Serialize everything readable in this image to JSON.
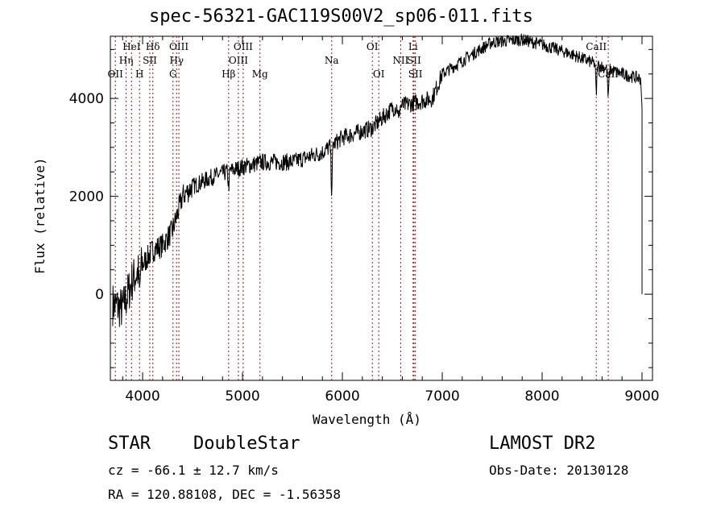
{
  "chart_data": {
    "type": "line",
    "title": "spec-56321-GAC119S00V2_sp06-011.fits",
    "xlabel": "Wavelength (Å)",
    "ylabel": "Flux (relative)",
    "xlim": [
      3677,
      9105
    ],
    "ylim": [
      -1760,
      5270
    ],
    "xticks": [
      4000,
      5000,
      6000,
      7000,
      8000,
      9000
    ],
    "yticks": [
      0,
      2000,
      4000
    ],
    "grid": false,
    "series": [
      {
        "name": "spectrum",
        "continuum": [
          [
            3700,
            -200
          ],
          [
            3800,
            -300
          ],
          [
            3900,
            300
          ],
          [
            4000,
            600
          ],
          [
            4100,
            900
          ],
          [
            4200,
            1000
          ],
          [
            4300,
            1300
          ],
          [
            4400,
            2000
          ],
          [
            4500,
            2200
          ],
          [
            4700,
            2400
          ],
          [
            5000,
            2600
          ],
          [
            5200,
            2700
          ],
          [
            5500,
            2700
          ],
          [
            5800,
            2900
          ],
          [
            6000,
            3200
          ],
          [
            6300,
            3400
          ],
          [
            6500,
            3800
          ],
          [
            6700,
            3900
          ],
          [
            6900,
            4000
          ],
          [
            7000,
            4500
          ],
          [
            7300,
            4900
          ],
          [
            7500,
            5150
          ],
          [
            7800,
            5200
          ],
          [
            8000,
            5100
          ],
          [
            8300,
            4900
          ],
          [
            8600,
            4650
          ],
          [
            8800,
            4500
          ],
          [
            8990,
            4400
          ]
        ],
        "absorption": [
          [
            5893,
            -900
          ],
          [
            8542,
            -600
          ],
          [
            8662,
            -600
          ],
          [
            3969,
            -500
          ],
          [
            4861,
            -300
          ],
          [
            6563,
            -300
          ]
        ],
        "end_drop": [
          [
            9000,
            3800
          ],
          [
            9000,
            0
          ],
          [
            9000,
            1300
          ]
        ]
      }
    ],
    "lines": [
      {
        "label": "OII",
        "wave": 3727,
        "row": 3
      },
      {
        "label": "Hη",
        "wave": 3835,
        "row": 2
      },
      {
        "label": "HeI",
        "wave": 3889,
        "row": 1
      },
      {
        "label": "H",
        "wave": 3969,
        "row": 3
      },
      {
        "label": "SII",
        "wave": 4072,
        "row": 2
      },
      {
        "label": "Hδ",
        "wave": 4102,
        "row": 1
      },
      {
        "label": "G",
        "wave": 4304,
        "row": 3
      },
      {
        "label": "Hγ",
        "wave": 4340,
        "row": 2
      },
      {
        "label": "OIII",
        "wave": 4363,
        "row": 1
      },
      {
        "label": "Hβ",
        "wave": 4861,
        "row": 3
      },
      {
        "label": "OIII",
        "wave": 4959,
        "row": 2
      },
      {
        "label": "OIII",
        "wave": 5007,
        "row": 1
      },
      {
        "label": "Mg",
        "wave": 5175,
        "row": 3
      },
      {
        "label": "Na",
        "wave": 5893,
        "row": 2
      },
      {
        "label": "OI",
        "wave": 6300,
        "row": 1
      },
      {
        "label": "OI",
        "wave": 6364,
        "row": 3
      },
      {
        "label": "NII",
        "wave": 6584,
        "row": 2
      },
      {
        "label": "Li",
        "wave": 6708,
        "row": 1
      },
      {
        "label": "SII",
        "wave": 6717,
        "row": 2
      },
      {
        "label": "SII",
        "wave": 6731,
        "row": 3
      },
      {
        "label": "CaII",
        "wave": 8542,
        "row": 1
      },
      {
        "label": "CaII",
        "wave": 8662,
        "row": 3
      }
    ]
  },
  "footer": {
    "class": "STAR",
    "subclass": "DoubleStar",
    "survey": "LAMOST DR2",
    "cz": "cz = -66.1 ± 12.7 km/s",
    "obsdate": "Obs-Date: 20130128",
    "radec": "RA = 120.88108, DEC =  -1.56358"
  },
  "colors": {
    "line_marker": "#8b1a1a",
    "spectrum": "#000000"
  }
}
